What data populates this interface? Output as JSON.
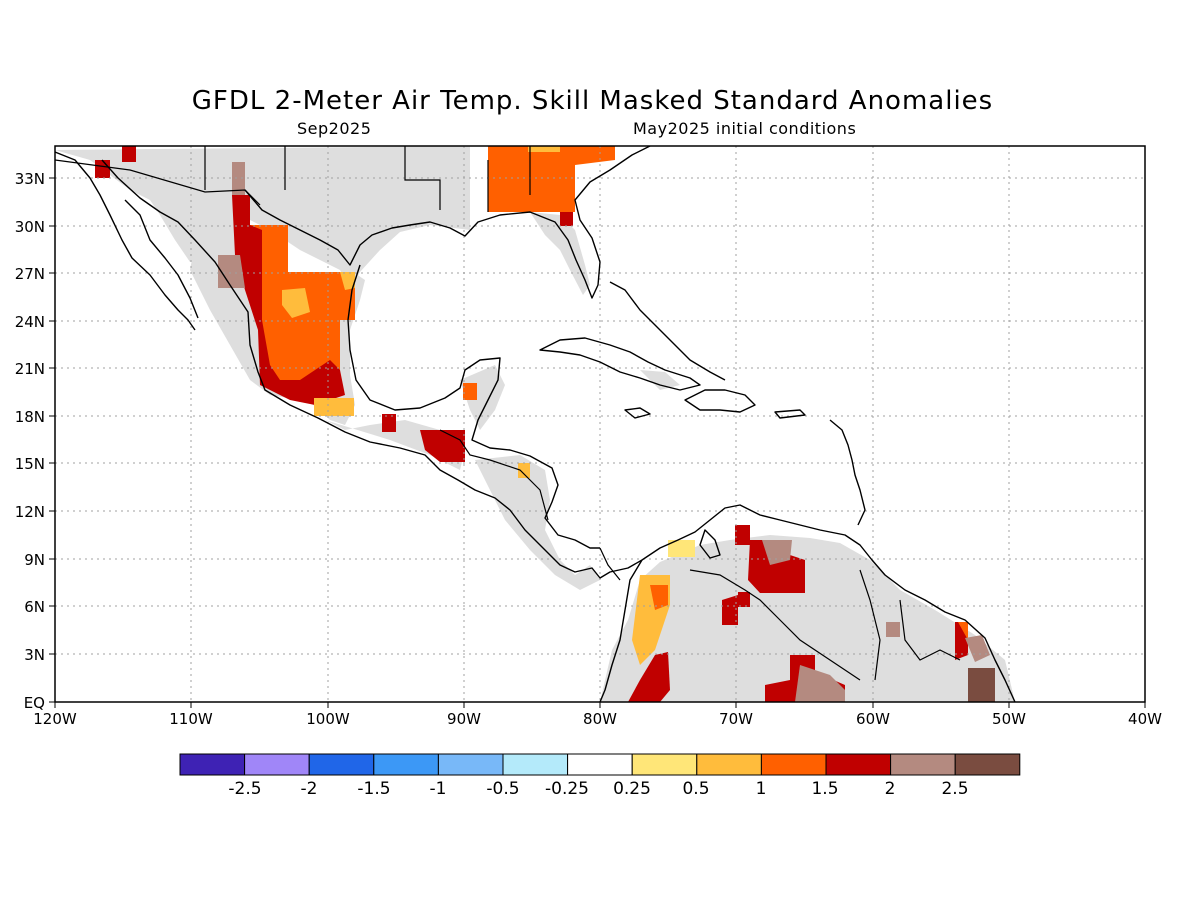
{
  "title": "GFDL 2-Meter Air Temp. Skill Masked Standard Anomalies",
  "subtitle_left": "Sep2025",
  "subtitle_right": "May2025 initial conditions",
  "lat_ticks": [
    "33N",
    "30N",
    "27N",
    "24N",
    "21N",
    "18N",
    "15N",
    "12N",
    "9N",
    "6N",
    "3N",
    "EQ"
  ],
  "lon_ticks": [
    "120W",
    "110W",
    "100W",
    "90W",
    "80W",
    "70W",
    "60W",
    "50W",
    "40W"
  ],
  "colorbar": {
    "colors": [
      "#3e22b4",
      "#a086f8",
      "#2066e8",
      "#3c98f6",
      "#78b8f8",
      "#b4eafa",
      "#ffffff",
      "#ffe678",
      "#ffbc3c",
      "#ff6000",
      "#c00000",
      "#b48a80",
      "#7a4c40"
    ],
    "labels": [
      "-2.5",
      "-2",
      "-1.5",
      "-1",
      "-0.5",
      "-0.25",
      "0.25",
      "0.5",
      "1",
      "1.5",
      "2",
      "2.5"
    ]
  },
  "colors": {
    "skill_mask": "#dedede",
    "land_outline": "#000000",
    "grid": "#a0a0a0"
  }
}
